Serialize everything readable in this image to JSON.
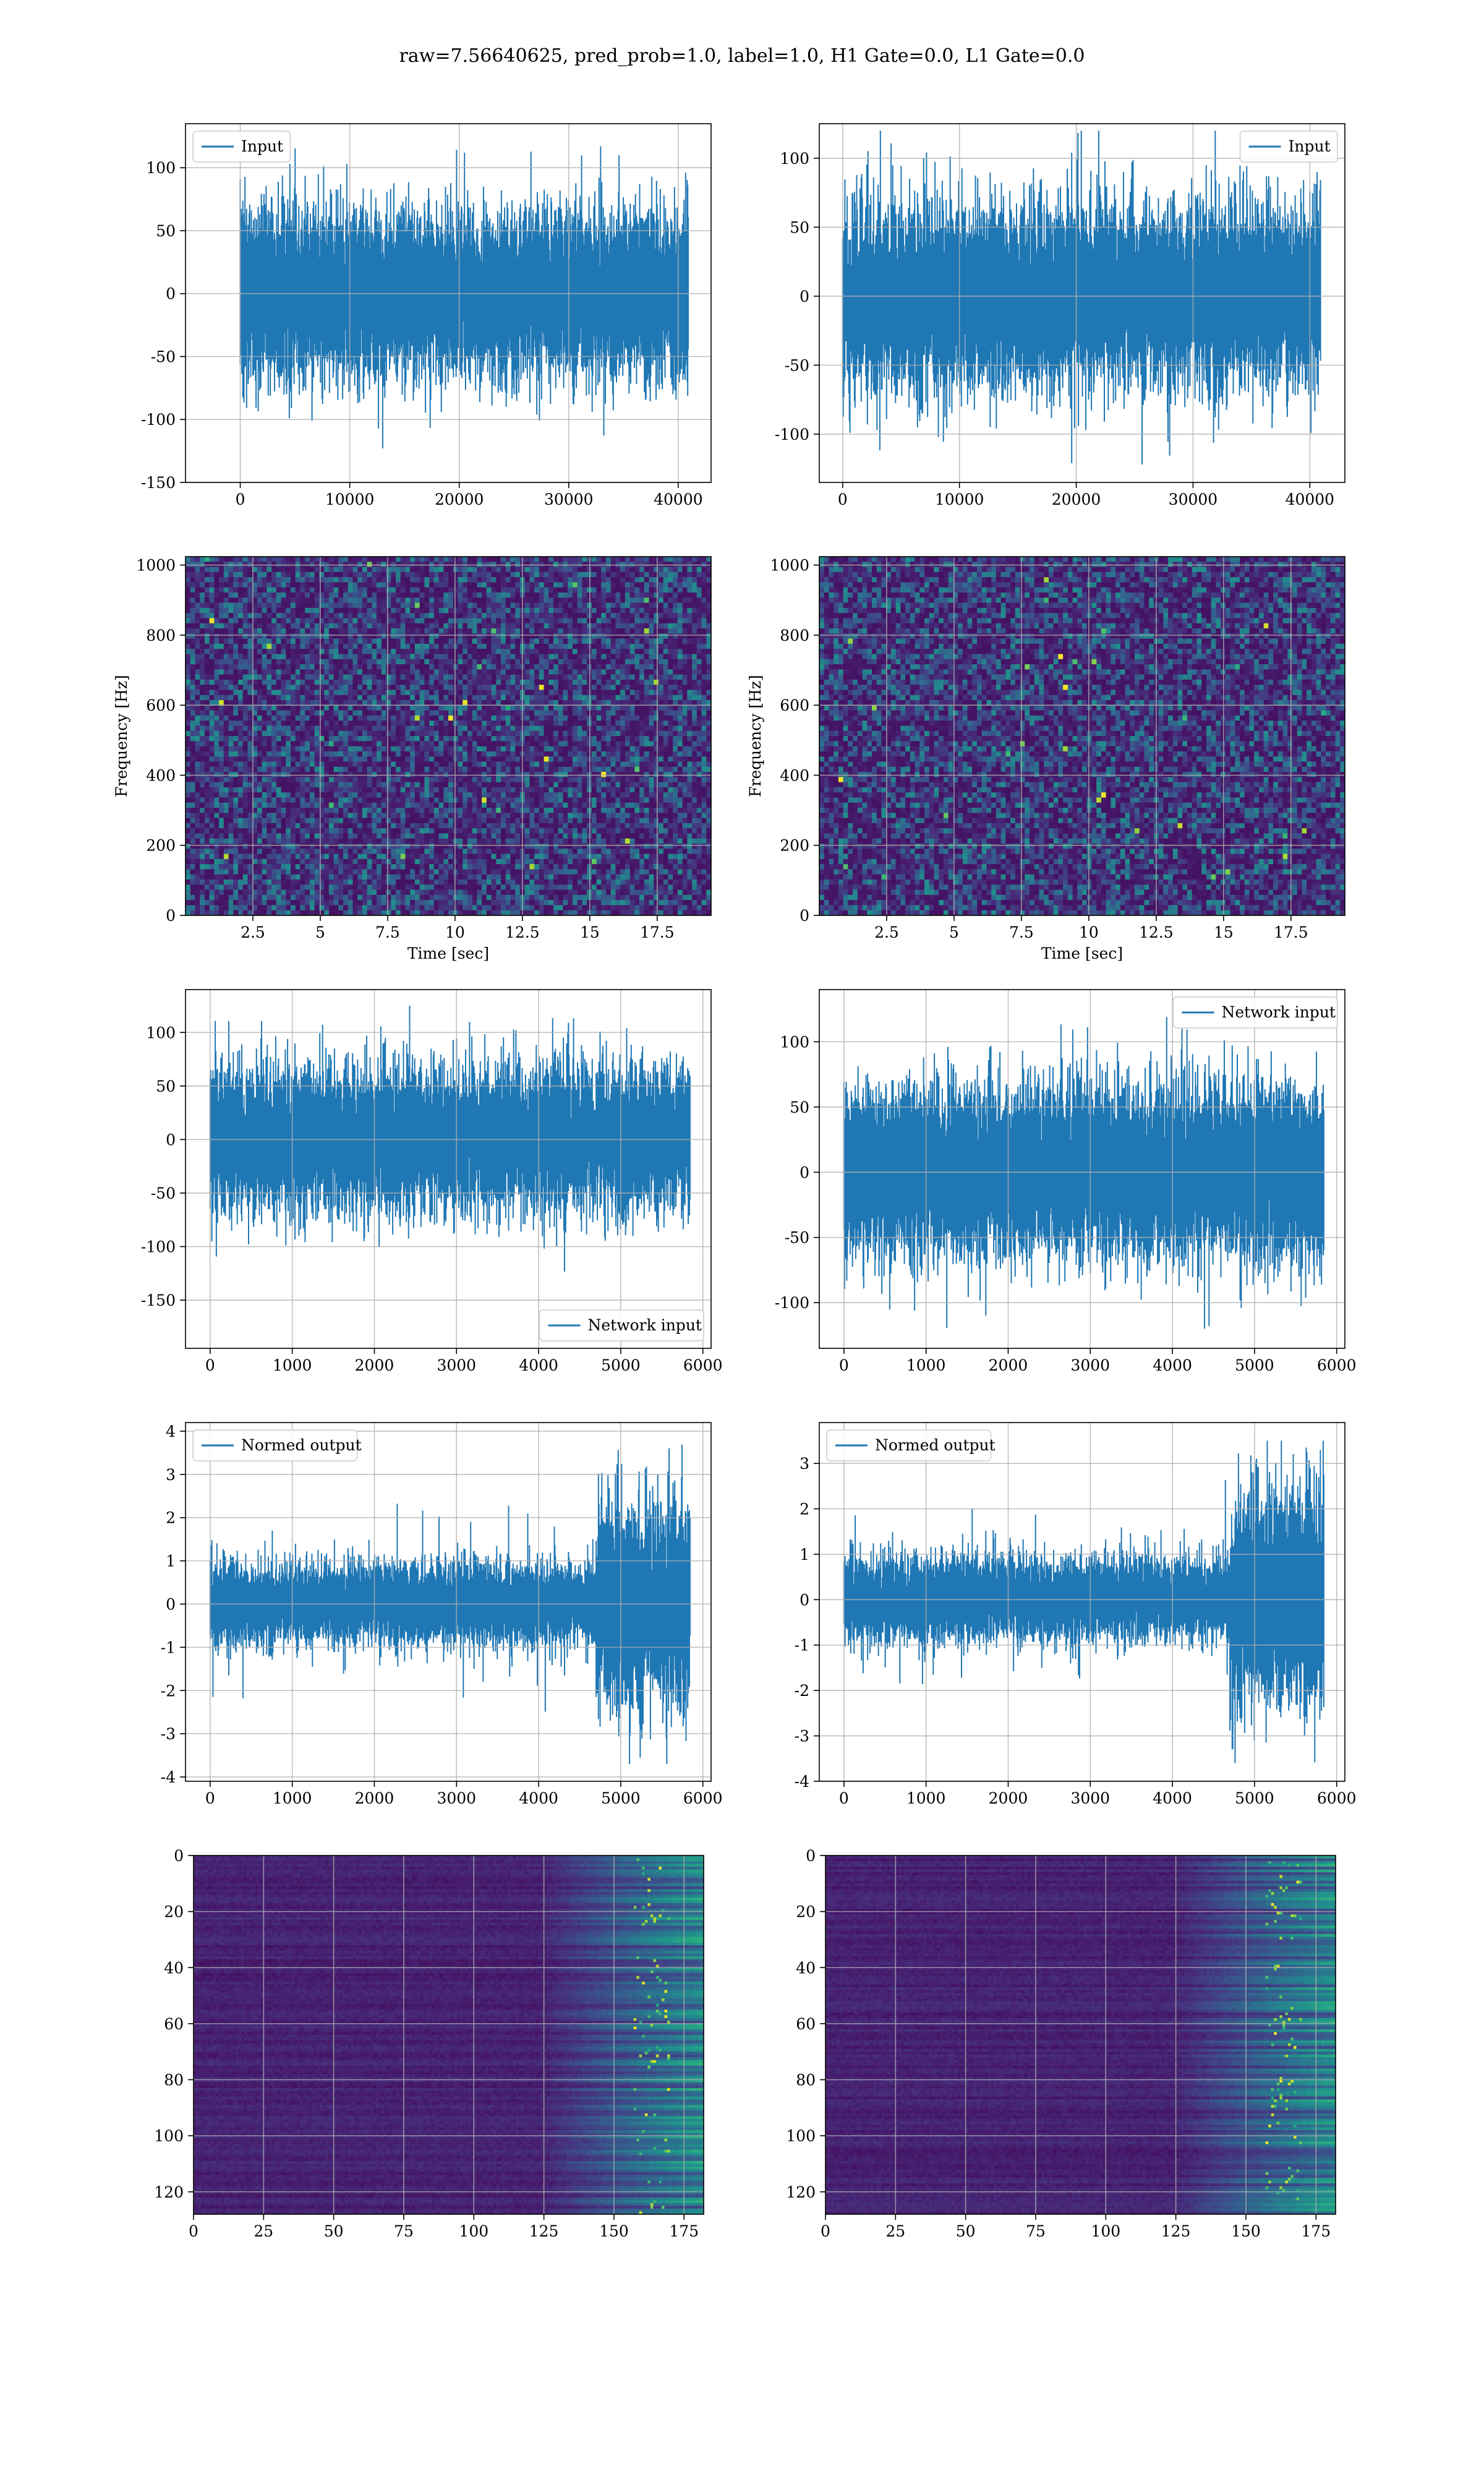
{
  "figure": {
    "suptitle": "raw=7.56640625, pred_prob=1.0, label=1.0, H1 Gate=0.0, L1 Gate=0.0",
    "line_color": "#1f77b4",
    "grid_color": "#b0b0b0",
    "heatmap_low": "#440154",
    "heatmap_high": "#fde725"
  },
  "chart_data": [
    {
      "id": "input-h1",
      "type": "line",
      "legend": "Input",
      "legend_loc": "upper left",
      "xlim": [
        -5000,
        43000
      ],
      "ylim": [
        -150,
        135
      ],
      "xticks": [
        0,
        10000,
        20000,
        30000,
        40000
      ],
      "yticks": [
        -150,
        -100,
        -50,
        0,
        50,
        100
      ],
      "xlabel": "",
      "ylabel": "",
      "series": [
        {
          "name": "Input",
          "n_samples": 40960,
          "approx_range": [
            -135,
            130
          ],
          "approx_std": 25
        }
      ]
    },
    {
      "id": "input-l1",
      "type": "line",
      "legend": "Input",
      "legend_loc": "upper right",
      "xlim": [
        -2000,
        43000
      ],
      "ylim": [
        -135,
        125
      ],
      "xticks": [
        0,
        10000,
        20000,
        30000,
        40000
      ],
      "yticks": [
        -100,
        -50,
        0,
        50,
        100
      ],
      "xlabel": "",
      "ylabel": "",
      "series": [
        {
          "name": "Input",
          "n_samples": 40960,
          "approx_range": [
            -122,
            120
          ],
          "approx_std": 25
        }
      ]
    },
    {
      "id": "spectrogram-h1",
      "type": "heatmap",
      "xlim": [
        0,
        19.5
      ],
      "ylim": [
        0,
        1024
      ],
      "xticks": [
        2.5,
        5.0,
        7.5,
        10.0,
        12.5,
        15.0,
        17.5
      ],
      "yticks": [
        0,
        200,
        400,
        600,
        800,
        1000
      ],
      "xlabel": "Time [sec]",
      "ylabel": "Frequency [Hz]"
    },
    {
      "id": "spectrogram-l1",
      "type": "heatmap",
      "xlim": [
        0,
        19.5
      ],
      "ylim": [
        0,
        1024
      ],
      "xticks": [
        2.5,
        5.0,
        7.5,
        10.0,
        12.5,
        15.0,
        17.5
      ],
      "yticks": [
        0,
        200,
        400,
        600,
        800,
        1000
      ],
      "xlabel": "Time [sec]",
      "ylabel": "Frequency [Hz]"
    },
    {
      "id": "network-input-h1",
      "type": "line",
      "legend": "Network input",
      "legend_loc": "lower right",
      "xlim": [
        -300,
        6100
      ],
      "ylim": [
        -195,
        140
      ],
      "xticks": [
        0,
        1000,
        2000,
        3000,
        4000,
        5000,
        6000
      ],
      "yticks": [
        -150,
        -100,
        -50,
        0,
        50,
        100
      ],
      "xlabel": "",
      "ylabel": "",
      "series": [
        {
          "name": "Network input",
          "n_samples": 5850,
          "approx_range": [
            -175,
            125
          ],
          "approx_std": 25
        }
      ]
    },
    {
      "id": "network-input-l1",
      "type": "line",
      "legend": "Network input",
      "legend_loc": "upper right",
      "xlim": [
        -300,
        6100
      ],
      "ylim": [
        -135,
        140
      ],
      "xticks": [
        0,
        1000,
        2000,
        3000,
        4000,
        5000,
        6000
      ],
      "yticks": [
        -100,
        -50,
        0,
        50,
        100
      ],
      "xlabel": "",
      "ylabel": "",
      "series": [
        {
          "name": "Network input",
          "n_samples": 5850,
          "approx_range": [
            -120,
            125
          ],
          "approx_std": 25
        }
      ]
    },
    {
      "id": "normed-output-h1",
      "type": "line",
      "legend": "Normed output",
      "legend_loc": "upper left",
      "xlim": [
        -300,
        6100
      ],
      "ylim": [
        -4.1,
        4.2
      ],
      "xticks": [
        0,
        1000,
        2000,
        3000,
        4000,
        5000,
        6000
      ],
      "yticks": [
        -4,
        -3,
        -2,
        -1,
        0,
        1,
        2,
        3,
        4
      ],
      "xlabel": "",
      "ylabel": "",
      "series": [
        {
          "name": "Normed output",
          "n_samples": 5850,
          "approx_range": [
            -3.7,
            4.0
          ],
          "approx_std": 0.35,
          "burst_start": 4700
        }
      ]
    },
    {
      "id": "normed-output-l1",
      "type": "line",
      "legend": "Normed output",
      "legend_loc": "upper left",
      "xlim": [
        -300,
        6100
      ],
      "ylim": [
        -4.0,
        3.9
      ],
      "xticks": [
        0,
        1000,
        2000,
        3000,
        4000,
        5000,
        6000
      ],
      "yticks": [
        -4,
        -3,
        -2,
        -1,
        0,
        1,
        2,
        3
      ],
      "xlabel": "",
      "ylabel": "",
      "series": [
        {
          "name": "Normed output",
          "n_samples": 5850,
          "approx_range": [
            -3.6,
            3.5
          ],
          "approx_std": 0.35,
          "burst_start": 4700
        }
      ]
    },
    {
      "id": "feature-map-h1",
      "type": "heatmap",
      "xlim": [
        0,
        182
      ],
      "ylim": [
        128,
        0
      ],
      "xticks": [
        0,
        25,
        50,
        75,
        100,
        125,
        150,
        175
      ],
      "yticks": [
        0,
        20,
        40,
        60,
        80,
        100,
        120
      ],
      "xlabel": "",
      "ylabel": ""
    },
    {
      "id": "feature-map-l1",
      "type": "heatmap",
      "xlim": [
        0,
        182
      ],
      "ylim": [
        128,
        0
      ],
      "xticks": [
        0,
        25,
        50,
        75,
        100,
        125,
        150,
        175
      ],
      "yticks": [
        0,
        20,
        40,
        60,
        80,
        100,
        120
      ],
      "xlabel": "",
      "ylabel": ""
    }
  ]
}
